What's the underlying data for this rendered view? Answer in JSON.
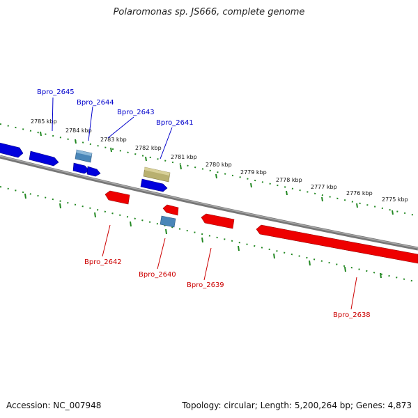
{
  "title": "Polaromonas sp. JS666, complete genome",
  "footer": {
    "accession": "Accession: NC_007948",
    "summary": "Topology: circular; Length: 5,200,264 bp; Genes: 4,873"
  },
  "colors": {
    "forward_strand": "#0000dd",
    "reverse_strand": "#ee0000",
    "backbone": "#888888",
    "tick": "#228822",
    "highlight_gene": "#b8b070",
    "other_gene": "#4a86b8"
  },
  "ticks": [
    {
      "label": "2785 kbp"
    },
    {
      "label": "2784 kbp"
    },
    {
      "label": "2783 kbp"
    },
    {
      "label": "2782 kbp"
    },
    {
      "label": "2781 kbp"
    },
    {
      "label": "2780 kbp"
    },
    {
      "label": "2779 kbp"
    },
    {
      "label": "2778 kbp"
    },
    {
      "label": "2777 kbp"
    },
    {
      "label": "2776 kbp"
    },
    {
      "label": "2775 kbp"
    }
  ],
  "gene_labels": {
    "forward": [
      {
        "name": "Bpro_2645"
      },
      {
        "name": "Bpro_2644"
      },
      {
        "name": "Bpro_2643"
      },
      {
        "name": "Bpro_2641"
      }
    ],
    "reverse": [
      {
        "name": "Bpro_2642"
      },
      {
        "name": "Bpro_2640"
      },
      {
        "name": "Bpro_2639"
      },
      {
        "name": "Bpro_2638"
      }
    ]
  }
}
